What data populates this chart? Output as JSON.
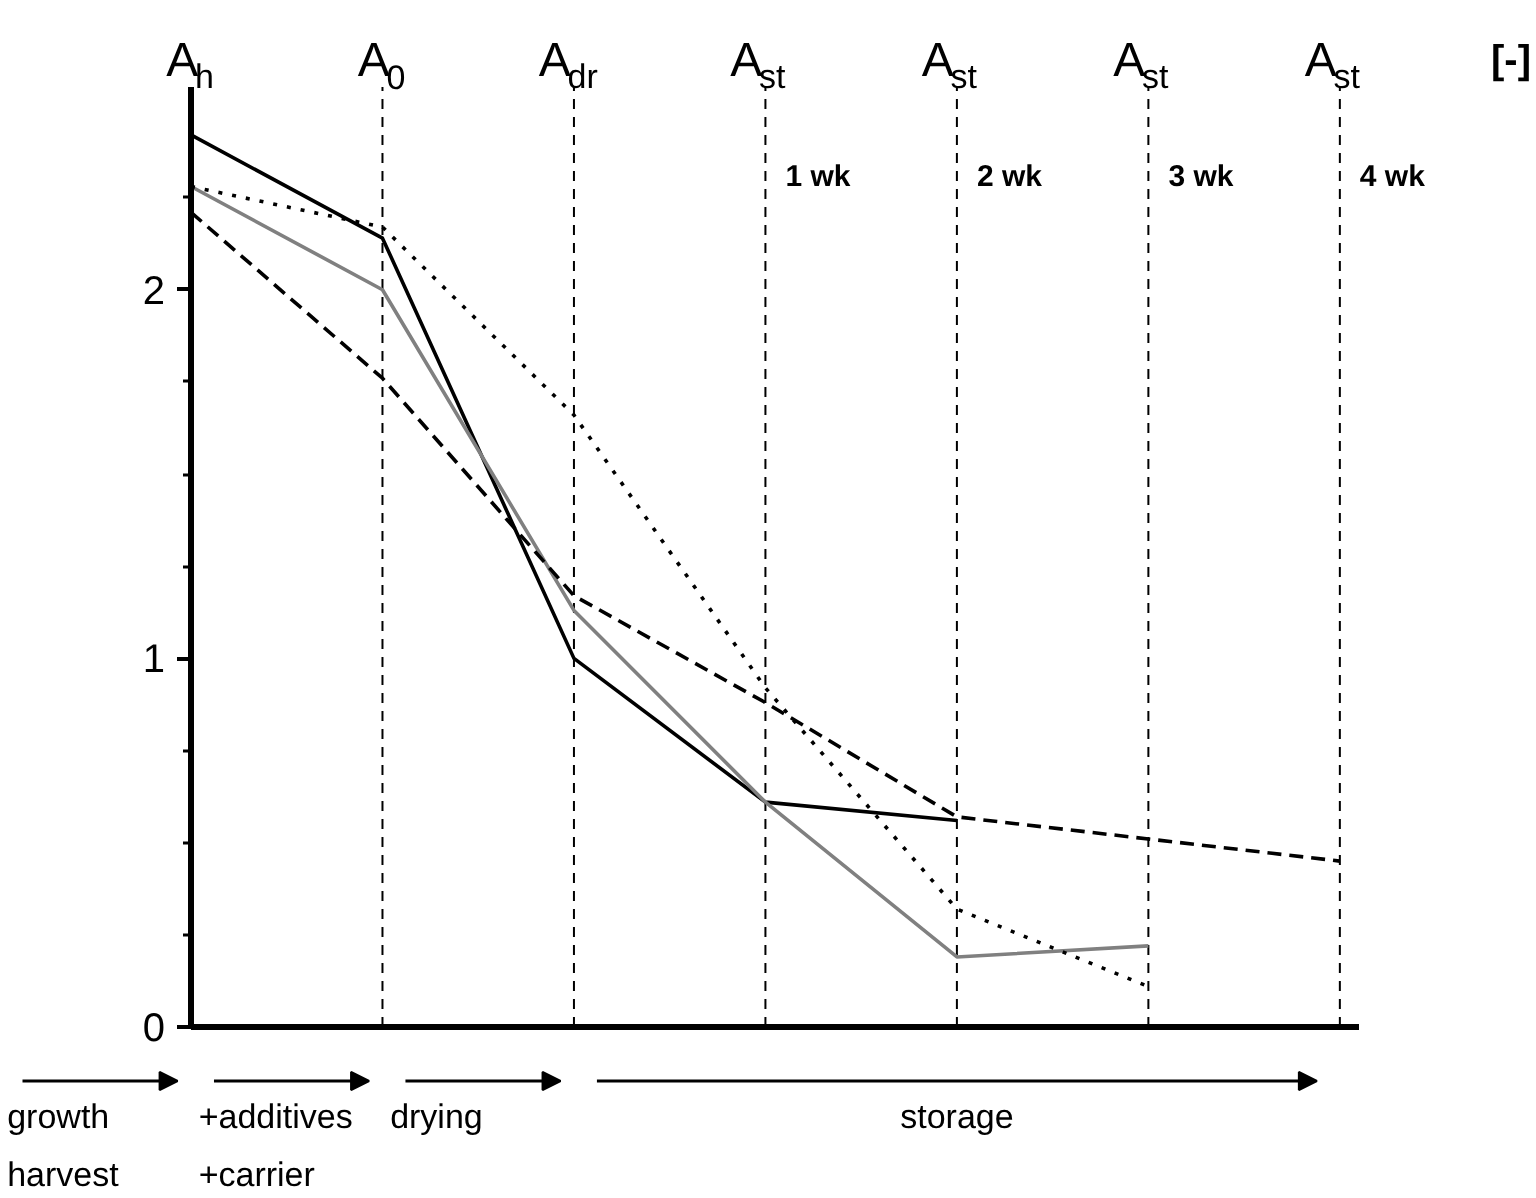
{
  "chart_data": {
    "type": "line",
    "categories": [
      "A$_{h}$",
      "A$_{0}$",
      "A$_{dr}$",
      "A$_{st}$",
      "A$_{st}$",
      "A$_{st}$",
      "A$_{st}$"
    ],
    "ylabel": "[-]",
    "ylim": [
      0,
      2.55
    ],
    "yticks": [
      0,
      {
        "value": 0.25,
        "label": null
      },
      {
        "value": 0.5,
        "label": null
      },
      {
        "value": 0.75,
        "label": null
      },
      1,
      {
        "value": 1.25,
        "label": null
      },
      {
        "value": 1.5,
        "label": null
      },
      {
        "value": 1.75,
        "label": null
      },
      2,
      {
        "value": 2.25,
        "label": null
      }
    ],
    "grid": "x",
    "series": [
      {
        "color": "#000000",
        "line_style": "solid",
        "values": [
          2.42,
          2.14,
          1.0,
          0.61,
          0.56,
          null,
          null
        ]
      },
      {
        "color": "#808080",
        "line_style": "solid",
        "values": [
          2.28,
          2.0,
          1.13,
          0.61,
          0.19,
          0.22,
          null
        ]
      },
      {
        "color": "#000000",
        "line_style": "dotted",
        "values": [
          2.28,
          2.17,
          1.66,
          0.92,
          0.32,
          0.11,
          null
        ]
      },
      {
        "color": "#000000",
        "line_style": "dashed",
        "values": [
          2.21,
          1.76,
          1.17,
          0.88,
          0.57,
          0.51,
          0.45
        ]
      }
    ],
    "annotations": [
      "1 wk",
      "2 wk",
      "3 wk",
      "4 wk",
      "growth\nharvest",
      "+additives\n+carrier",
      "drying",
      "storage"
    ]
  }
}
